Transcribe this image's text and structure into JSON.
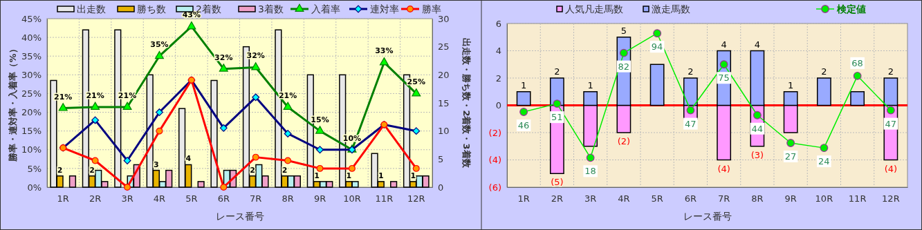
{
  "chart_data": [
    {
      "type": "bar",
      "xlabel": "レース番号",
      "ylabel": "勝率・連対率・入着率（%）",
      "y2label": "出走数・勝ち数・2着数・3着数",
      "categories": [
        "1R",
        "2R",
        "3R",
        "4R",
        "5R",
        "6R",
        "7R",
        "8R",
        "9R",
        "10R",
        "11R",
        "12R"
      ],
      "ylim": [
        0,
        45
      ],
      "yticks": [
        {
          "value": 0,
          "label": "0%"
        },
        {
          "value": 5,
          "label": "5%"
        },
        {
          "value": 10,
          "label": "10%"
        },
        {
          "value": 15,
          "label": "15%"
        },
        {
          "value": 20,
          "label": "20%"
        },
        {
          "value": 25,
          "label": "25%"
        },
        {
          "value": 30,
          "label": "30%"
        },
        {
          "value": 35,
          "label": "35%"
        },
        {
          "value": 40,
          "label": "40%"
        },
        {
          "value": 45,
          "label": "45%"
        }
      ],
      "y2lim": [
        0,
        30
      ],
      "y2ticks": [
        0,
        5,
        10,
        15,
        20,
        25,
        30
      ],
      "grid": true,
      "legend": "top",
      "series": [
        {
          "name": "出走数",
          "color": "#e8e8e8",
          "axis": "y2",
          "values": [
            19,
            28,
            28,
            20,
            14,
            19,
            25,
            28,
            20,
            20,
            6,
            20
          ]
        },
        {
          "name": "勝ち数",
          "color": "#e8b400",
          "axis": "y2",
          "values": [
            2,
            2,
            0,
            3,
            4,
            0,
            2,
            2,
            1,
            1,
            1,
            1
          ],
          "value_labels": [
            "2",
            "2",
            null,
            "3",
            "4",
            null,
            "2",
            "2",
            "1",
            "1",
            "1",
            "1"
          ]
        },
        {
          "name": "2着数",
          "color": "#b8f0f0",
          "axis": "y2",
          "values": [
            0,
            3,
            2,
            1,
            0,
            3,
            4,
            2,
            1,
            1,
            0,
            2
          ]
        },
        {
          "name": "3着数",
          "color": "#f0a0c8",
          "axis": "y2",
          "values": [
            2,
            1,
            4,
            3,
            1,
            3,
            2,
            2,
            1,
            0,
            1,
            2
          ]
        },
        {
          "name": "入着率",
          "type": "line",
          "color": "#008000",
          "marker": "triangle",
          "axis": "y",
          "values": [
            21.1,
            21.4,
            21.4,
            35,
            42.9,
            31.6,
            32,
            21.4,
            15,
            10,
            33.3,
            25
          ],
          "value_labels": [
            "21%",
            "21%",
            "21%",
            "35%",
            "43%",
            "32%",
            "32%",
            "21%",
            "15%",
            "10%",
            "33%",
            "25%"
          ]
        },
        {
          "name": "連対率",
          "type": "line",
          "color": "#000080",
          "marker": "diamond",
          "axis": "y",
          "values": [
            10.5,
            17.9,
            7.1,
            20,
            28.6,
            15.8,
            24,
            14.3,
            10,
            10,
            16.7,
            15
          ]
        },
        {
          "name": "勝率",
          "type": "line",
          "color": "#ff0000",
          "marker": "circle",
          "axis": "y",
          "values": [
            10.5,
            7.1,
            0,
            15,
            28.6,
            0,
            8,
            7.1,
            5,
            5,
            16.7,
            5
          ]
        }
      ]
    },
    {
      "type": "bar",
      "stacked": true,
      "xlabel": "レース番号",
      "categories": [
        "1R",
        "2R",
        "3R",
        "4R",
        "5R",
        "6R",
        "7R",
        "8R",
        "9R",
        "10R",
        "11R",
        "12R"
      ],
      "ylim": [
        -6,
        6
      ],
      "y2lim": [
        0,
        100
      ],
      "yticks": [
        {
          "value": -6,
          "label": "(6)"
        },
        {
          "value": -4,
          "label": "(4)"
        },
        {
          "value": -2,
          "label": "(2)"
        },
        0,
        2,
        4,
        6
      ],
      "grid": true,
      "legend": "top",
      "ref_lines": [
        {
          "axis": "y",
          "value": 0,
          "color": "#ff0000"
        }
      ],
      "series": [
        {
          "name": "人気凡走馬数",
          "color": "#ff99ff",
          "values": [
            0,
            -5,
            -3,
            -2,
            0,
            -1,
            -4,
            -3,
            -2,
            0,
            0,
            -4
          ],
          "value_labels": [
            null,
            "(5)",
            null,
            "(2)",
            null,
            null,
            "(4)",
            "(3)",
            null,
            null,
            null,
            "(4)"
          ]
        },
        {
          "name": "激走馬数",
          "color": "#99aaff",
          "values": [
            1,
            2,
            1,
            5,
            3,
            2,
            4,
            4,
            1,
            2,
            1,
            2
          ],
          "value_labels": [
            "1",
            "2",
            "1",
            "5",
            null,
            "2",
            "4",
            "4",
            "1",
            "2",
            null,
            "2"
          ]
        },
        {
          "name": "検定値",
          "type": "line",
          "color": "#00ee00",
          "marker": "circle",
          "axis": "y2",
          "values": [
            46,
            51,
            18,
            82,
            94,
            47,
            75,
            44,
            27,
            24,
            68,
            47
          ],
          "value_labels": [
            "46",
            "51",
            "18",
            "82",
            "94",
            "47",
            "75",
            "44",
            "27",
            "24",
            "68",
            "47"
          ]
        }
      ]
    }
  ]
}
